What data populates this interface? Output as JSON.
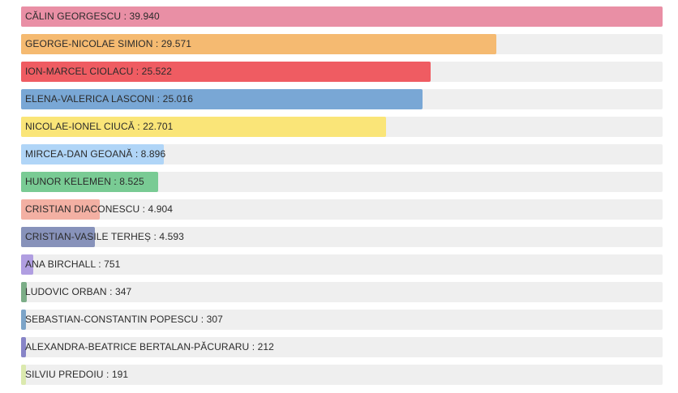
{
  "chart_data": {
    "type": "bar",
    "orientation": "horizontal",
    "title": "",
    "xlabel": "",
    "ylabel": "",
    "xlim": [
      0,
      39940
    ],
    "categories": [
      "CĂLIN GEORGESCU",
      "GEORGE-NICOLAE SIMION",
      "ION-MARCEL CIOLACU",
      "ELENA-VALERICA LASCONI",
      "NICOLAE-IONEL CIUCĂ",
      "MIRCEA-DAN GEOANĂ",
      "HUNOR KELEMEN",
      "CRISTIAN DIACONESCU",
      "CRISTIAN-VASILE TERHEȘ",
      "ANA BIRCHALL",
      "LUDOVIC ORBAN",
      "SEBASTIAN-CONSTANTIN POPESCU",
      "ALEXANDRA-BEATRICE BERTALAN-PĂCURARU",
      "SILVIU PREDOIU"
    ],
    "values": [
      39940,
      29571,
      25522,
      25016,
      22701,
      8896,
      8525,
      4904,
      4593,
      751,
      347,
      307,
      212,
      191
    ],
    "labels": [
      "CĂLIN GEORGESCU : 39.940",
      "GEORGE-NICOLAE SIMION : 29.571",
      "ION-MARCEL CIOLACU : 25.522",
      "ELENA-VALERICA LASCONI : 25.016",
      "NICOLAE-IONEL CIUCĂ : 22.701",
      "MIRCEA-DAN GEOANĂ : 8.896",
      "HUNOR KELEMEN : 8.525",
      "CRISTIAN DIACONESCU : 4.904",
      "CRISTIAN-VASILE TERHEȘ : 4.593",
      "ANA BIRCHALL : 751",
      "LUDOVIC ORBAN : 347",
      "SEBASTIAN-CONSTANTIN POPESCU : 307",
      "ALEXANDRA-BEATRICE BERTALAN-PĂCURARU : 212",
      "SILVIU PREDOIU : 191"
    ],
    "colors": [
      "#e8849c",
      "#f5b463",
      "#ee4b52",
      "#6b9fd1",
      "#fbe36a",
      "#a9d2f7",
      "#6cc68a",
      "#f3a99a",
      "#7b87b4",
      "#a895df",
      "#6ea57b",
      "#6f9bc3",
      "#7b78c2",
      "#d8e8a6"
    ]
  }
}
